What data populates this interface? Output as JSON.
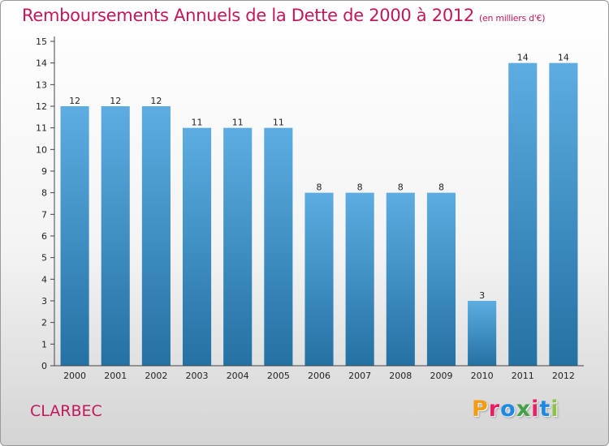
{
  "title": "Remboursements Annuels de la Dette de 2000 à 2012",
  "unit": "(en milliers d'€)",
  "commune": "CLARBEC",
  "logo": {
    "text": "Proxiti",
    "letter_colors": [
      "#f39c12",
      "#e91e63",
      "#1e88e5",
      "#43a047",
      "#e91e63",
      "#1e88e5",
      "#8bc34a"
    ]
  },
  "colors": {
    "bar_top": "#5dade2",
    "bar_bottom": "#2471a3",
    "accent": "#c2185b"
  },
  "chart_data": {
    "type": "bar",
    "categories": [
      "2000",
      "2001",
      "2002",
      "2003",
      "2004",
      "2005",
      "2006",
      "2007",
      "2008",
      "2009",
      "2010",
      "2011",
      "2012"
    ],
    "values": [
      12,
      12,
      12,
      11,
      11,
      11,
      8,
      8,
      8,
      8,
      3,
      14,
      14
    ],
    "data_labels": [
      "12",
      "12",
      "12",
      "11",
      "11",
      "11",
      "8",
      "8",
      "8",
      "8",
      "3",
      "14",
      "14"
    ],
    "title": "Remboursements Annuels de la Dette de 2000 à 2012",
    "xlabel": "",
    "ylabel": "",
    "ylim": [
      0,
      15
    ],
    "y_ticks": [
      0,
      1,
      2,
      3,
      4,
      5,
      6,
      7,
      8,
      9,
      10,
      11,
      12,
      13,
      14,
      15
    ],
    "grid": false,
    "legend": "none"
  }
}
